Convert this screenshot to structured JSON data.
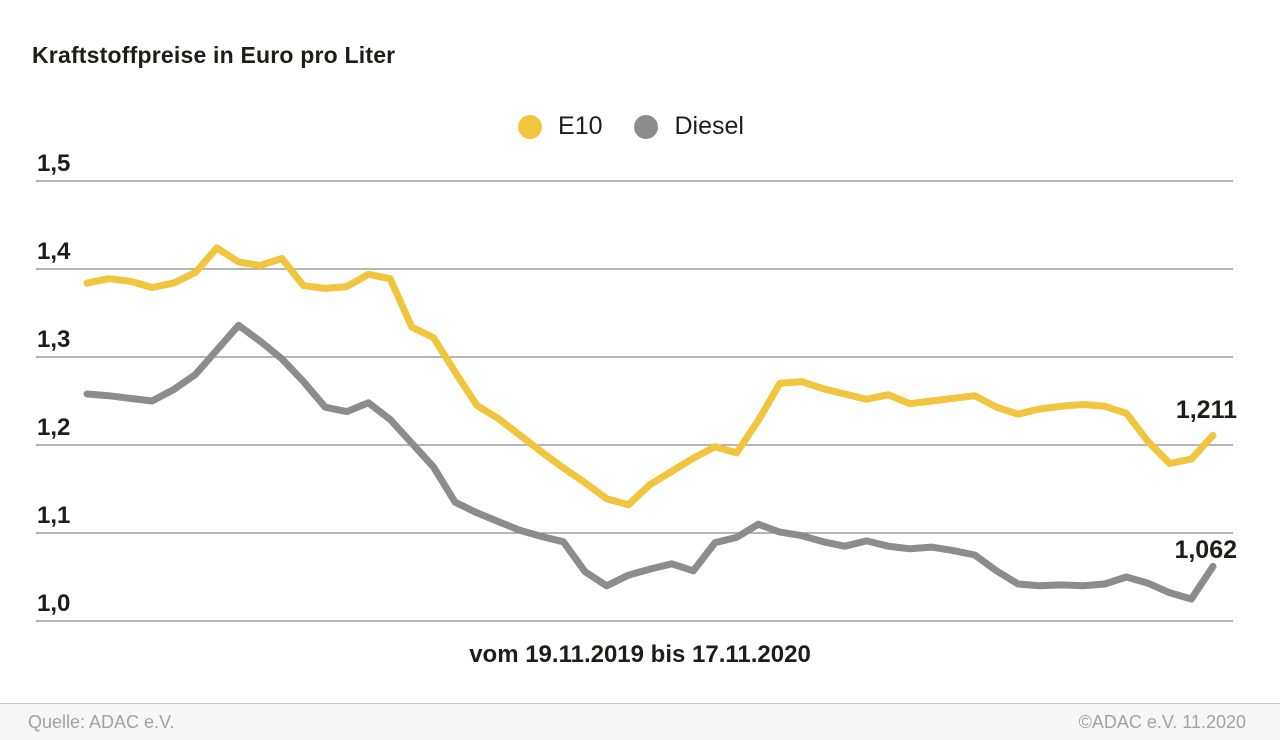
{
  "title": "Kraftstoffpreise in Euro pro Liter",
  "caption": "vom 19.11.2019 bis 17.11.2020",
  "footer": {
    "source": "Quelle: ADAC e.V.",
    "copyright": "©ADAC e.V. 11.2020"
  },
  "colors": {
    "e10": "#F1C63E",
    "diesel": "#8C8C8C",
    "grid": "#8a8a8a",
    "text": "#1d1d1b",
    "footer_text": "#a2a2a2"
  },
  "chart_data": {
    "type": "line",
    "title": "Kraftstoffpreise in Euro pro Liter",
    "xlabel": "vom 19.11.2019 bis 17.11.2020",
    "x_range": [
      "19.11.2019",
      "17.11.2020"
    ],
    "x_unit": "weeks",
    "ylabel": "Euro pro Liter",
    "ylim": [
      1.0,
      1.5
    ],
    "grid": true,
    "legend_position": "top-center",
    "y_tick_labels": [
      "1,5",
      "1,4",
      "1,3",
      "1,2",
      "1,1",
      "1,0"
    ],
    "y_tick_values": [
      1.5,
      1.4,
      1.3,
      1.2,
      1.1,
      1.0
    ],
    "series": [
      {
        "name": "E10",
        "color": "#F1C63E",
        "end_label": "1,211",
        "end_value": 1.211,
        "values": [
          1.384,
          1.389,
          1.386,
          1.379,
          1.384,
          1.396,
          1.424,
          1.408,
          1.404,
          1.412,
          1.381,
          1.378,
          1.38,
          1.394,
          1.389,
          1.334,
          1.322,
          1.283,
          1.245,
          1.23,
          1.211,
          1.192,
          1.174,
          1.157,
          1.139,
          1.132,
          1.155,
          1.17,
          1.185,
          1.198,
          1.191,
          1.228,
          1.27,
          1.272,
          1.264,
          1.258,
          1.252,
          1.257,
          1.247,
          1.25,
          1.253,
          1.256,
          1.243,
          1.235,
          1.241,
          1.244,
          1.246,
          1.244,
          1.236,
          1.204,
          1.179,
          1.184,
          1.211
        ]
      },
      {
        "name": "Diesel",
        "color": "#8C8C8C",
        "end_label": "1,062",
        "end_value": 1.062,
        "values": [
          1.258,
          1.256,
          1.253,
          1.25,
          1.263,
          1.28,
          1.308,
          1.336,
          1.318,
          1.298,
          1.272,
          1.243,
          1.238,
          1.248,
          1.229,
          1.202,
          1.175,
          1.135,
          1.123,
          1.113,
          1.103,
          1.096,
          1.09,
          1.056,
          1.04,
          1.052,
          1.059,
          1.065,
          1.057,
          1.089,
          1.095,
          1.11,
          1.101,
          1.097,
          1.09,
          1.085,
          1.091,
          1.085,
          1.082,
          1.084,
          1.08,
          1.075,
          1.057,
          1.042,
          1.04,
          1.041,
          1.04,
          1.042,
          1.05,
          1.043,
          1.032,
          1.025,
          1.062
        ]
      }
    ]
  }
}
